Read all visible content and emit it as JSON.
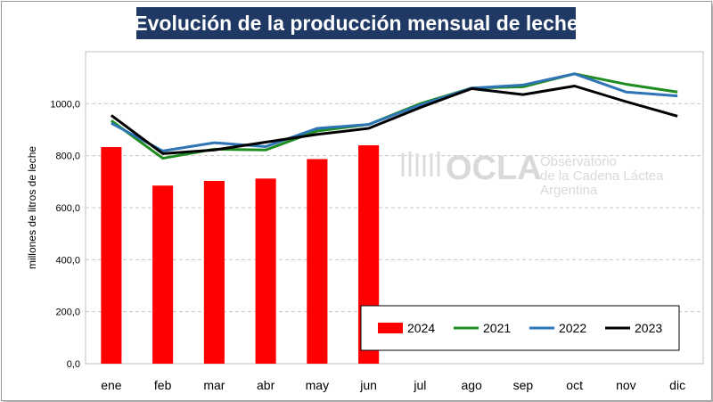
{
  "chart_data": {
    "type": "bar+line",
    "title": "Evolución de la producción mensual de leche",
    "ylabel": "millones de litros de leche",
    "xlabel": "",
    "ylim": [
      0,
      1200
    ],
    "yticks": [
      "0,0",
      "200,0",
      "400,0",
      "600,0",
      "800,0",
      "1000,0"
    ],
    "ytick_values": [
      0,
      200,
      400,
      600,
      800,
      1000
    ],
    "grid": "horizontal dashed",
    "legend_position": "bottom-right",
    "categories": [
      "ene",
      "feb",
      "mar",
      "abr",
      "may",
      "jun",
      "jul",
      "ago",
      "sep",
      "oct",
      "nov",
      "dic"
    ],
    "series": [
      {
        "name": "2024",
        "kind": "bar",
        "color": "#ff0000",
        "values": [
          833,
          685,
          703,
          712,
          787,
          840,
          null,
          null,
          null,
          null,
          null,
          null
        ]
      },
      {
        "name": "2021",
        "kind": "line",
        "color": "#1e8c1e",
        "values": [
          935,
          790,
          825,
          822,
          895,
          920,
          1000,
          1060,
          1065,
          1115,
          1075,
          1045
        ]
      },
      {
        "name": "2022",
        "kind": "line",
        "color": "#2e75b6",
        "values": [
          925,
          818,
          850,
          835,
          905,
          920,
          995,
          1060,
          1072,
          1115,
          1045,
          1030
        ]
      },
      {
        "name": "2023",
        "kind": "line",
        "color": "#000000",
        "values": [
          955,
          808,
          822,
          852,
          882,
          905,
          985,
          1058,
          1035,
          1068,
          1008,
          952
        ]
      }
    ]
  },
  "watermark": {
    "brand": "OCLA",
    "line1": "Observatorio",
    "line2": "de la Cadena Láctea",
    "line3": "Argentina",
    "color": "#d9d9d9"
  }
}
